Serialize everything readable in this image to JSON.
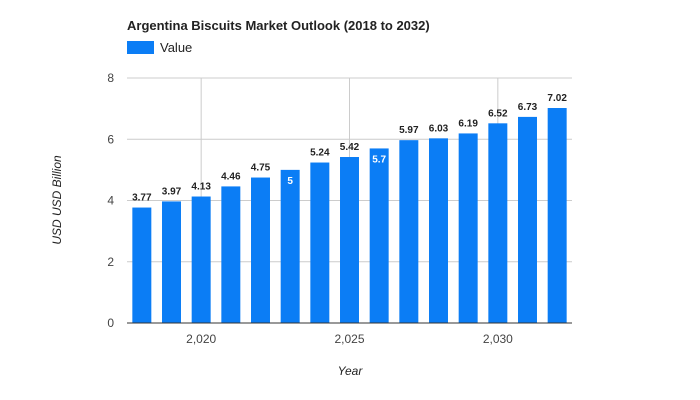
{
  "colors": {
    "bar": "#0b7df5",
    "grid": "#cccccc",
    "axis": "#333333",
    "text": "#222222",
    "inside_label": "#ffffff"
  },
  "chart_data": {
    "type": "bar",
    "title": "Argentina Biscuits Market Outlook (2018 to 2032)",
    "xlabel": "Year",
    "ylabel": "USD USD Billion",
    "legend": {
      "position": "top-left",
      "entries": [
        "Value"
      ]
    },
    "series": [
      {
        "name": "Value",
        "x": [
          2018,
          2019,
          2020,
          2021,
          2022,
          2023,
          2024,
          2025,
          2026,
          2027,
          2028,
          2029,
          2030,
          2031,
          2032
        ],
        "values": [
          3.77,
          3.97,
          4.13,
          4.46,
          4.75,
          5,
          5.24,
          5.42,
          5.7,
          5.97,
          6.03,
          6.19,
          6.52,
          6.73,
          7.02
        ],
        "data_labels": [
          "3.77",
          "3.97",
          "4.13",
          "4.46",
          "4.75",
          "5",
          "5.24",
          "5.42",
          "5.7",
          "5.97",
          "6.03",
          "6.19",
          "6.52",
          "6.73",
          "7.02"
        ]
      }
    ],
    "ylim": [
      0,
      8
    ],
    "yticks": [
      0,
      2,
      4,
      6,
      8
    ],
    "xticks": [
      2020,
      2025,
      2030
    ],
    "xtick_labels": [
      "2,020",
      "2,025",
      "2,030"
    ],
    "grid": true
  }
}
